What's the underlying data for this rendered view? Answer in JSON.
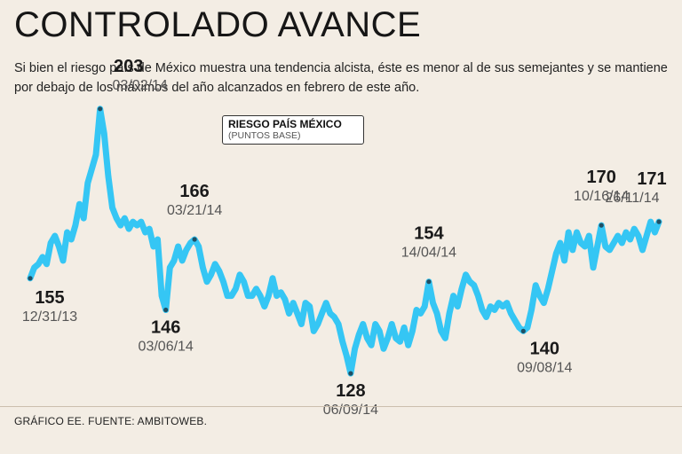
{
  "title": "CONTROLADO AVANCE",
  "subtitle": "Si bien el riesgo país de México muestra una tendencia alcista, éste es menor al de sus semejantes y se mantiene por debajo de los máximos del año alcanzados en febrero de este año.",
  "legend": {
    "title": "RIESGO PAÍS MÉXICO",
    "units": "(PUNTOS BASE)"
  },
  "footer": "GRÁFICO EE. FUENTE: AMBITOWEB.",
  "colors": {
    "line": "#35c6f4",
    "marker": "#1f4f63",
    "background": "#f3ede4"
  },
  "chart_data": {
    "type": "line",
    "title": "CONTROLADO AVANCE",
    "ylabel": "Riesgo país México (puntos base)",
    "xlabel": "",
    "ylim": [
      122,
      210
    ],
    "grid": false,
    "values": [
      155,
      158,
      159,
      161,
      159,
      165,
      167,
      164,
      160,
      168,
      166,
      170,
      176,
      172,
      182,
      186,
      190,
      203,
      196,
      184,
      175,
      172,
      170,
      172,
      169,
      171,
      170,
      171,
      168,
      169,
      164,
      166,
      150,
      146,
      158,
      160,
      164,
      160,
      163,
      165,
      166,
      164,
      158,
      154,
      156,
      159,
      157,
      154,
      150,
      150,
      152,
      156,
      154,
      150,
      150,
      152,
      150,
      147,
      150,
      155,
      150,
      151,
      149,
      145,
      148,
      145,
      142,
      148,
      147,
      140,
      142,
      145,
      148,
      145,
      144,
      142,
      137,
      133,
      128,
      135,
      139,
      142,
      138,
      136,
      142,
      140,
      135,
      138,
      142,
      138,
      137,
      141,
      136,
      140,
      146,
      145,
      147,
      154,
      148,
      145,
      140,
      138,
      145,
      150,
      147,
      152,
      156,
      154,
      153,
      150,
      146,
      144,
      147,
      146,
      148,
      147,
      148,
      145,
      143,
      141,
      140,
      141,
      146,
      153,
      150,
      148,
      152,
      157,
      162,
      165,
      160,
      168,
      163,
      168,
      165,
      164,
      167,
      158,
      164,
      170,
      164,
      163,
      165,
      167,
      165,
      168,
      166,
      169,
      167,
      163,
      167,
      171,
      168,
      171
    ],
    "annotations": [
      {
        "value": "155",
        "date": "12/31/13",
        "index": 0,
        "pos": "below-left"
      },
      {
        "value": "203",
        "date": "03/02/14",
        "index": 17,
        "pos": "above-right"
      },
      {
        "value": "146",
        "date": "03/06/14",
        "index": 33,
        "pos": "below"
      },
      {
        "value": "166",
        "date": "03/21/14",
        "index": 40,
        "pos": "above"
      },
      {
        "value": "128",
        "date": "06/09/14",
        "index": 78,
        "pos": "below"
      },
      {
        "value": "154",
        "date": "14/04/14",
        "index": 97,
        "pos": "above"
      },
      {
        "value": "140",
        "date": "09/08/14",
        "index": 120,
        "pos": "below-right"
      },
      {
        "value": "170",
        "date": "10/16/14",
        "index": 139,
        "pos": "above"
      },
      {
        "value": "171",
        "date": "26/11/14",
        "index": 153,
        "pos": "above-left"
      }
    ]
  }
}
